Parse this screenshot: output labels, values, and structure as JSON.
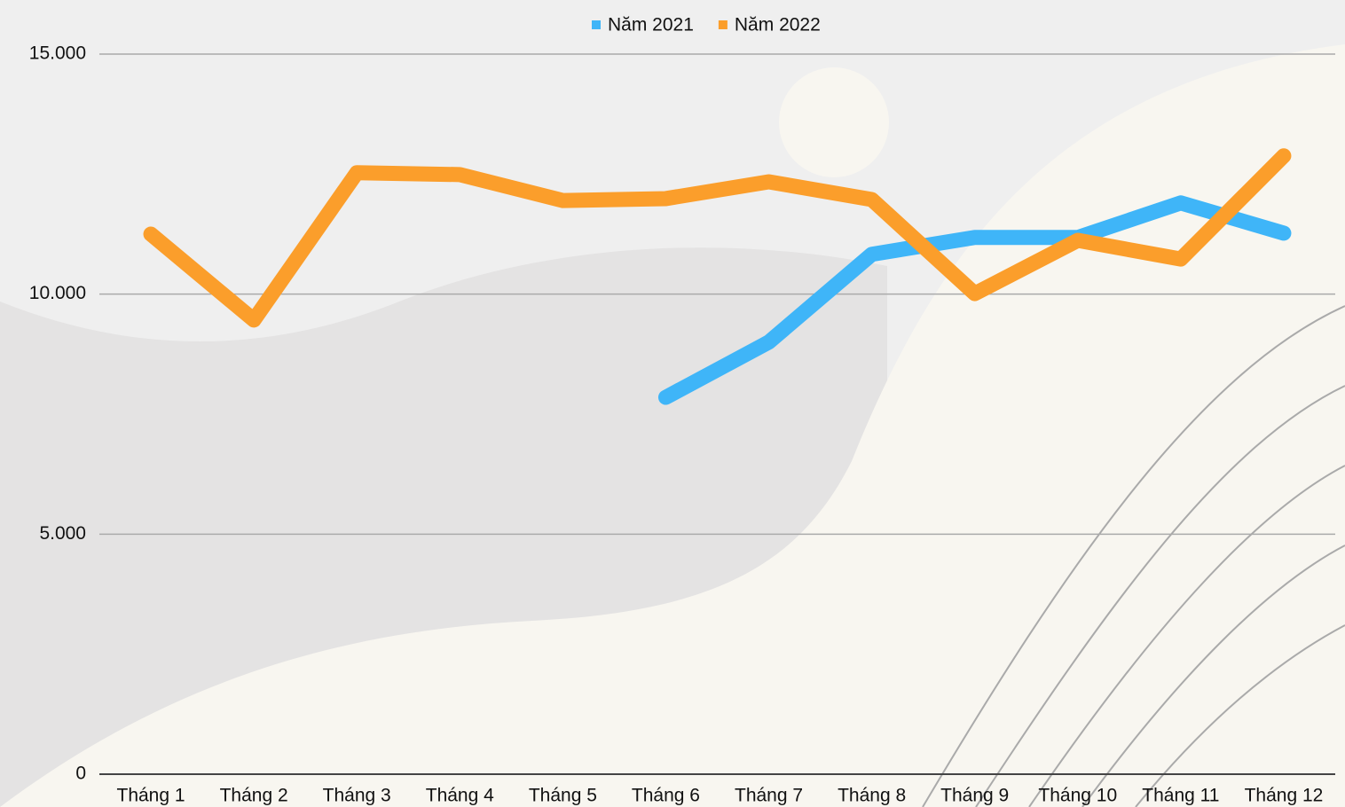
{
  "chart_data": {
    "type": "line",
    "categories": [
      "Tháng 1",
      "Tháng 2",
      "Tháng 3",
      "Tháng 4",
      "Tháng 5",
      "Tháng 6",
      "Tháng 7",
      "Tháng 8",
      "Tháng 9",
      "Tháng 10",
      "Tháng 11",
      "Tháng 12"
    ],
    "series": [
      {
        "name": "Năm 2021",
        "color": "#3fb5f8",
        "values": [
          null,
          null,
          null,
          null,
          null,
          7850,
          9000,
          10830,
          11180,
          11180,
          11900,
          11270
        ]
      },
      {
        "name": "Năm 2022",
        "color": "#fb9e2b",
        "values": [
          11250,
          9460,
          12530,
          12490,
          11950,
          11990,
          12340,
          11970,
          10010,
          11120,
          10730,
          12880
        ]
      }
    ],
    "ylim": [
      0,
      15000
    ],
    "yticks": [
      {
        "value": 0,
        "label": "0"
      },
      {
        "value": 5000,
        "label": "5.000"
      },
      {
        "value": 10000,
        "label": "10.000"
      },
      {
        "value": 15000,
        "label": "15.000"
      }
    ],
    "grid": true,
    "legend": "top"
  }
}
